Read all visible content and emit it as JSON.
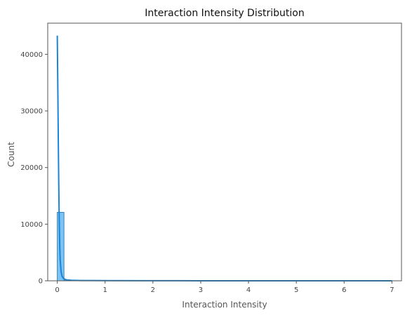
{
  "chart_data": {
    "type": "bar",
    "title": "Interaction Intensity Distribution",
    "xlabel": "Interaction Intensity",
    "ylabel": "Count",
    "xlim": [
      -0.2,
      7.2
    ],
    "ylim": [
      0,
      45500
    ],
    "xticks": [
      0,
      1,
      2,
      3,
      4,
      5,
      6,
      7
    ],
    "yticks": [
      0,
      10000,
      20000,
      30000,
      40000
    ],
    "grid": false,
    "bins": [
      {
        "x0": 0.0,
        "x1": 0.14,
        "count": 12100
      },
      {
        "x0": 0.14,
        "x1": 0.28,
        "count": 60
      },
      {
        "x0": 0.28,
        "x1": 0.42,
        "count": 20
      },
      {
        "x0": 0.42,
        "x1": 0.56,
        "count": 10
      },
      {
        "x0": 0.56,
        "x1": 0.7,
        "count": 6
      },
      {
        "x0": 0.7,
        "x1": 0.84,
        "count": 4
      },
      {
        "x0": 0.84,
        "x1": 0.98,
        "count": 3
      },
      {
        "x0": 0.98,
        "x1": 1.12,
        "count": 2
      },
      {
        "x0": 1.12,
        "x1": 1.26,
        "count": 2
      },
      {
        "x0": 1.26,
        "x1": 1.4,
        "count": 1
      }
    ],
    "series": [
      {
        "type": "kde",
        "x": [
          0.0,
          0.01,
          0.02,
          0.03,
          0.04,
          0.05,
          0.06,
          0.08,
          0.1,
          0.13,
          0.16,
          0.2,
          0.3,
          0.5,
          1.0,
          2.0,
          3.0,
          4.0,
          5.0,
          6.0,
          7.0
        ],
        "y": [
          43300,
          35000,
          26000,
          17500,
          11000,
          6500,
          3800,
          1600,
          800,
          420,
          260,
          160,
          90,
          50,
          25,
          12,
          8,
          6,
          5,
          4,
          3
        ]
      }
    ],
    "colors": {
      "bar_fill": "#7cc3f5",
      "bar_stroke": "#1a6fa8",
      "line": "#1a85d8",
      "spine": "#555555"
    }
  }
}
